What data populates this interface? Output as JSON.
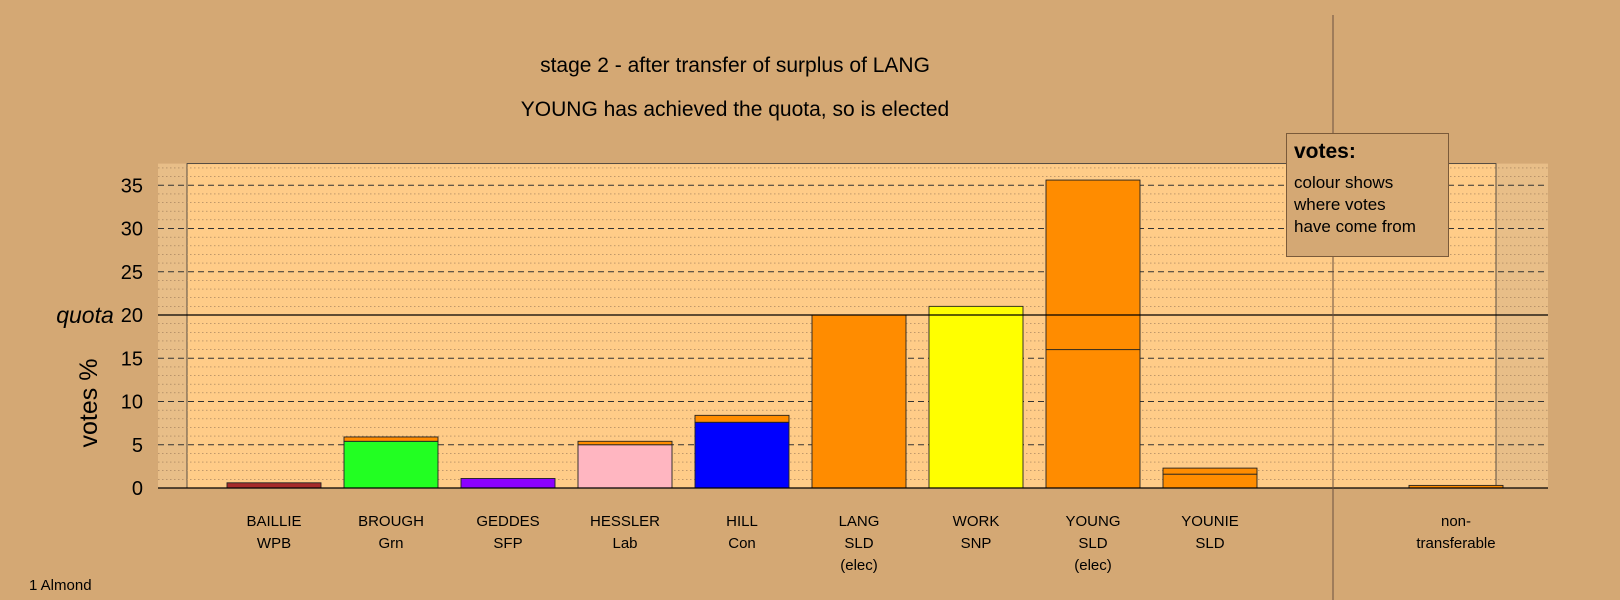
{
  "titles": {
    "line1": "stage 2 - after transfer of surplus of LANG",
    "line2": "YOUNG has achieved the quota, so is elected"
  },
  "legend": {
    "title": "votes:",
    "lines": [
      "colour shows",
      "where votes",
      "have come from"
    ]
  },
  "footnote": "1 Almond",
  "chart_data": {
    "type": "bar",
    "stacked": true,
    "ylabel": "votes %",
    "ylim": [
      0,
      37.5
    ],
    "yticks": [
      0,
      5,
      10,
      15,
      20,
      25,
      30,
      35
    ],
    "quota": 20,
    "quota_label": "quota",
    "grid": true,
    "legend_position": "top-right",
    "candidates": [
      {
        "name": "BAILLIE",
        "party": "WPB",
        "note": "",
        "segments": [
          {
            "value": 0.6,
            "color": "#A52A2A"
          }
        ]
      },
      {
        "name": "BROUGH",
        "party": "Grn",
        "note": "",
        "segments": [
          {
            "value": 5.4,
            "color": "#22FF22"
          },
          {
            "value": 0.5,
            "color": "#FF8C00"
          }
        ]
      },
      {
        "name": "GEDDES",
        "party": "SFP",
        "note": "",
        "segments": [
          {
            "value": 1.1,
            "color": "#8B00FF"
          }
        ]
      },
      {
        "name": "HESSLER",
        "party": "Lab",
        "note": "",
        "segments": [
          {
            "value": 5.0,
            "color": "#FFB6C1"
          },
          {
            "value": 0.4,
            "color": "#FF8C00"
          }
        ]
      },
      {
        "name": "HILL",
        "party": "Con",
        "note": "",
        "segments": [
          {
            "value": 7.6,
            "color": "#0000FF"
          },
          {
            "value": 0.8,
            "color": "#FF8C00"
          }
        ]
      },
      {
        "name": "LANG",
        "party": "SLD",
        "note": "(elec)",
        "segments": [
          {
            "value": 20.0,
            "color": "#FF8C00"
          }
        ]
      },
      {
        "name": "WORK",
        "party": "SNP",
        "note": "",
        "segments": [
          {
            "value": 21.0,
            "color": "#FFFF00"
          }
        ]
      },
      {
        "name": "YOUNG",
        "party": "SLD",
        "note": "(elec)",
        "segments": [
          {
            "value": 16.0,
            "color": "#FF8C00"
          },
          {
            "value": 19.6,
            "color": "#FF8C00"
          }
        ]
      },
      {
        "name": "YOUNIE",
        "party": "SLD",
        "note": "",
        "segments": [
          {
            "value": 1.6,
            "color": "#FF8C00"
          },
          {
            "value": 0.7,
            "color": "#FF8C00"
          }
        ]
      },
      {
        "name": "",
        "party": "",
        "note": "",
        "segments": []
      },
      {
        "name": "non-",
        "party": "transferable",
        "note": "",
        "segments": [
          {
            "value": 0.3,
            "color": "#FF8C00"
          }
        ]
      }
    ]
  }
}
